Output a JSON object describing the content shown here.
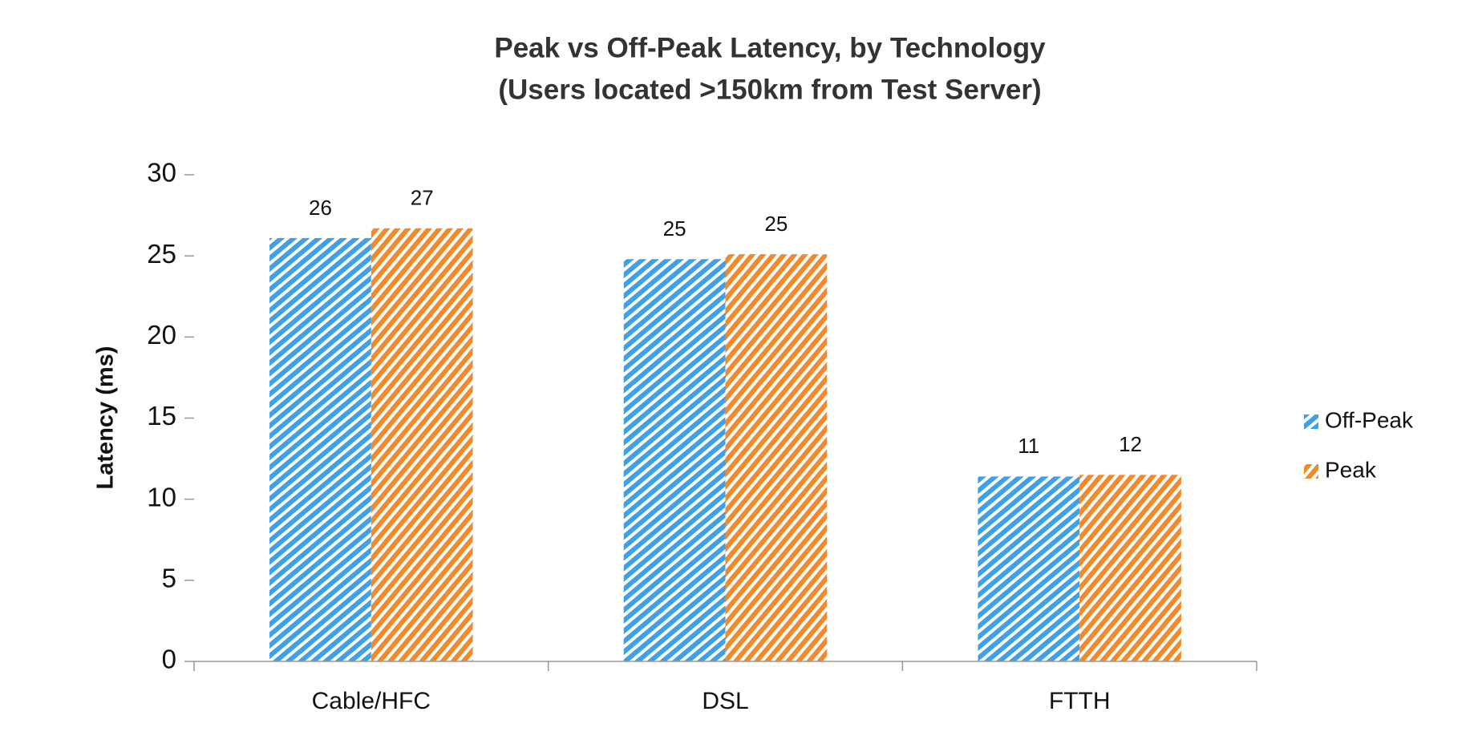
{
  "chart_data": {
    "type": "bar",
    "title": [
      "Peak vs Off-Peak Latency, by Technology",
      "(Users located >150km from Test Server)"
    ],
    "y_label": "Latency (ms)",
    "categories": [
      "Cable/HFC",
      "DSL",
      "FTTH"
    ],
    "series": [
      {
        "name": "Off-Peak",
        "color": "#3fa0e8",
        "values": [
          26.1,
          24.8,
          11.4
        ],
        "value_labels": [
          "26",
          "25",
          "11"
        ]
      },
      {
        "name": "Peak",
        "color": "#f28a2b",
        "values": [
          26.7,
          25.1,
          11.5
        ],
        "value_labels": [
          "27",
          "25",
          "12"
        ]
      }
    ],
    "ylim": [
      0,
      30
    ],
    "yticks": [
      0,
      5,
      10,
      15,
      20,
      25,
      30
    ],
    "legend": "right",
    "hatch": true
  }
}
